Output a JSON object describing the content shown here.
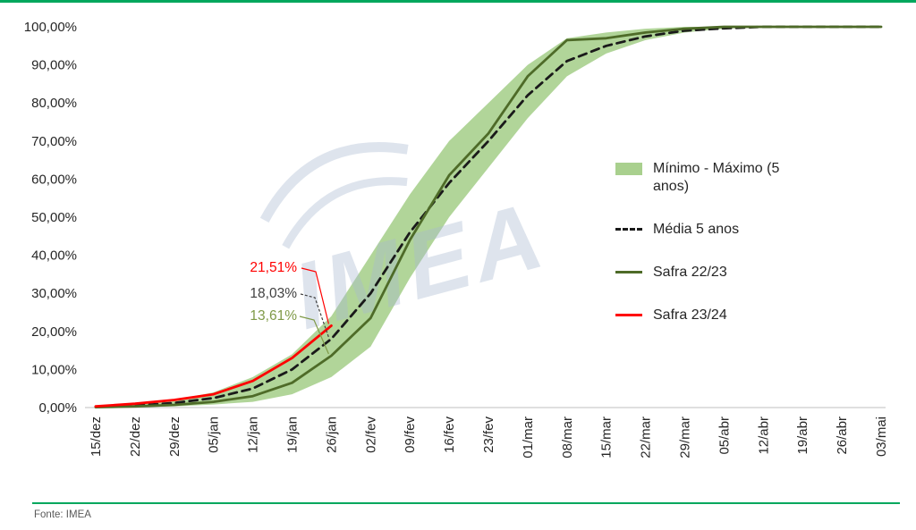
{
  "footer": {
    "source": "Fonte: IMEA"
  },
  "watermark": {
    "text": "IMEA",
    "color": "#a9b9d0"
  },
  "accent": {
    "line_color": "#00a75d"
  },
  "chart_data": {
    "type": "line",
    "title": "",
    "xlabel": "",
    "ylabel": "",
    "grid": false,
    "legend_position": "right-middle",
    "categories": [
      "15/dez",
      "22/dez",
      "29/dez",
      "05/jan",
      "12/jan",
      "19/jan",
      "26/jan",
      "02/fev",
      "09/fev",
      "16/fev",
      "23/fev",
      "01/mar",
      "08/mar",
      "15/mar",
      "22/mar",
      "29/mar",
      "05/abr",
      "12/abr",
      "19/abr",
      "26/abr",
      "03/mai"
    ],
    "y_axis": {
      "min": 0,
      "max": 100,
      "step": 10,
      "tick_labels": [
        "0,00%",
        "10,00%",
        "20,00%",
        "30,00%",
        "40,00%",
        "50,00%",
        "60,00%",
        "70,00%",
        "80,00%",
        "90,00%",
        "100,00%"
      ]
    },
    "axis_text_color": "#262626",
    "series": [
      {
        "name": "Mínimo - Máximo (5 anos)",
        "type": "band",
        "color": "#a9d08e",
        "min": [
          0,
          0.1,
          0.3,
          0.8,
          1.5,
          3.5,
          8,
          16,
          34,
          50,
          63,
          76,
          87,
          93,
          96.5,
          98.5,
          99.5,
          100,
          100,
          100,
          100
        ],
        "max": [
          0.5,
          1,
          2,
          4,
          8,
          14,
          24,
          40,
          56,
          70,
          80,
          90,
          97,
          98.5,
          99.5,
          100,
          100,
          100,
          100,
          100,
          100
        ]
      },
      {
        "name": "Média 5 anos",
        "type": "line",
        "style": "dashed",
        "color": "#1a1a1a",
        "values": [
          0.2,
          0.5,
          1.2,
          2.5,
          5,
          10,
          18.03,
          30,
          46,
          59,
          70,
          82,
          91,
          95,
          97.5,
          99,
          99.6,
          100,
          100,
          100,
          100
        ]
      },
      {
        "name": "Safra 22/23",
        "type": "line",
        "style": "solid",
        "color": "#4e6b28",
        "values": [
          0.1,
          0.3,
          0.7,
          1.5,
          3,
          6.5,
          13.61,
          23.5,
          44,
          61,
          72,
          87,
          96.5,
          97,
          98.5,
          99.5,
          100,
          100,
          100,
          100,
          100
        ]
      },
      {
        "name": "Safra 23/24",
        "type": "line",
        "style": "solid",
        "color": "#ff0000",
        "values": [
          0.3,
          1,
          2,
          3.5,
          7,
          13,
          21.51,
          null,
          null,
          null,
          null,
          null,
          null,
          null,
          null,
          null,
          null,
          null,
          null,
          null,
          null
        ]
      }
    ],
    "annotations": [
      {
        "text": "21,51%",
        "color": "#ff0000",
        "series": "Safra 23/24",
        "category": "26/jan",
        "value": 21.51
      },
      {
        "text": "18,03%",
        "color": "#404040",
        "series": "Média 5 anos",
        "category": "26/jan",
        "value": 18.03
      },
      {
        "text": "13,61%",
        "color": "#7f9a48",
        "series": "Safra 22/23",
        "category": "26/jan",
        "value": 13.61
      }
    ]
  }
}
